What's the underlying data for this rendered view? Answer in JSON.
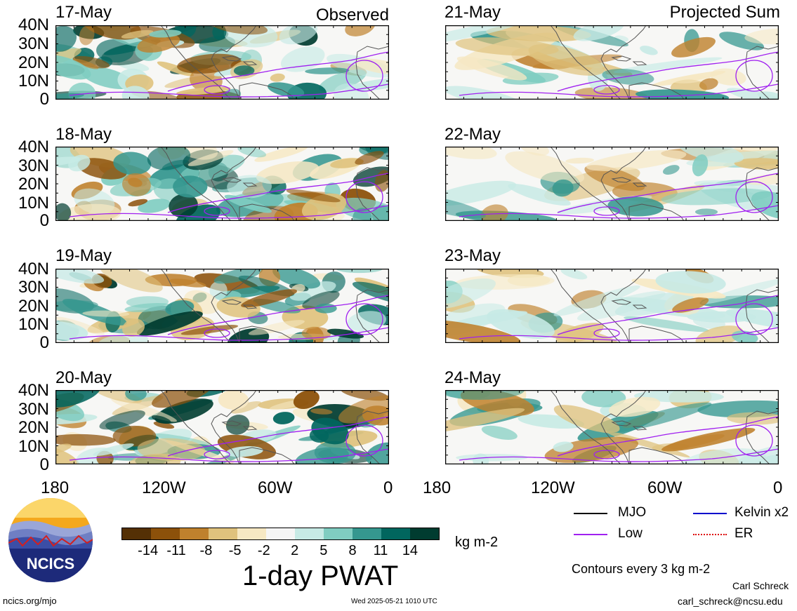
{
  "panels": {
    "p17": {
      "date": "17-May"
    },
    "p18": {
      "date": "18-May"
    },
    "p19": {
      "date": "19-May"
    },
    "p20": {
      "date": "20-May"
    },
    "p21": {
      "date": "21-May"
    },
    "p22": {
      "date": "22-May"
    },
    "p23": {
      "date": "23-May"
    },
    "p24": {
      "date": "24-May"
    }
  },
  "labels": {
    "observed": "Observed",
    "projected": "Projected Sum"
  },
  "lat_ticks": [
    "40N",
    "30N",
    "20N",
    "10N",
    "0"
  ],
  "lon_ticks": [
    "180",
    "120W",
    "60W",
    "0"
  ],
  "colorbar": {
    "ticks": [
      "-14",
      "-11",
      "-8",
      "-5",
      "-2",
      "2",
      "5",
      "8",
      "11",
      "14"
    ],
    "colors": [
      "#543005",
      "#8c510a",
      "#bf812d",
      "#dfc27d",
      "#f6e8c3",
      "#f5f5f5",
      "#c7eae5",
      "#80cdc1",
      "#35978f",
      "#01665e",
      "#003c30"
    ],
    "units": "kg m-2"
  },
  "title": "1-day PWAT",
  "legend": {
    "mjo": {
      "label": "MJO",
      "color": "#000000"
    },
    "kelvin": {
      "label": "Kelvin x2",
      "color": "#0000cc"
    },
    "low": {
      "label": "Low",
      "color": "#a020f0"
    },
    "er": {
      "label": "ER",
      "color": "#dd0000"
    },
    "contours_note": "Contours every 3 kg m-2"
  },
  "logo": {
    "text": "NCICS"
  },
  "footer": {
    "url": "ncics.org/mjo",
    "timestamp": "Wed 2025-05-21 1010 UTC",
    "author": "Carl Schreck",
    "email": "carl_schreck@ncsu.edu"
  }
}
